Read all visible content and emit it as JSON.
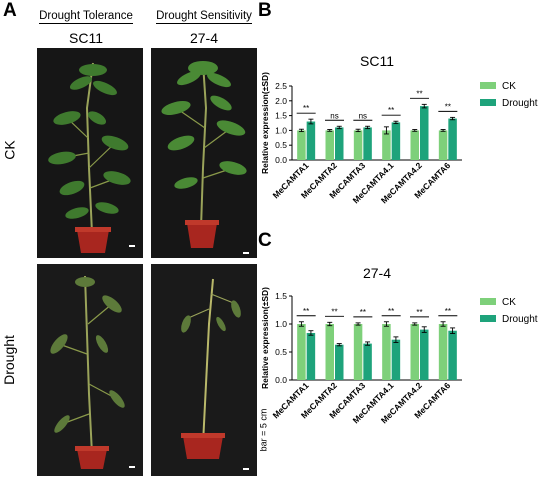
{
  "panels": {
    "a": "A",
    "b": "B",
    "c": "C"
  },
  "photo_panel": {
    "columns": [
      {
        "heading": "Drought Tolerance",
        "cultivar": "SC11"
      },
      {
        "heading": "Drought Sensitivity",
        "cultivar": "27-4"
      }
    ],
    "rows": [
      "CK",
      "Drought"
    ],
    "scale_bar": "bar = 5 cm"
  },
  "colors": {
    "ck": "#7ED07A",
    "drought": "#1EA37B"
  },
  "chart_data": [
    {
      "type": "bar",
      "title": "SC11",
      "ylabel": "Relative expression(±SD)",
      "xlabel": "",
      "ylim": [
        0,
        2.5
      ],
      "yticks": [
        "0.0",
        "0.5",
        "1.0",
        "1.5",
        "2.0",
        "2.5"
      ],
      "categories": [
        "MeCAMTA1",
        "MeCAMTA2",
        "MeCAMTA3",
        "MeCAMTA4.1",
        "MeCAMTA4.2",
        "MeCAMTA6"
      ],
      "series": [
        {
          "name": "CK",
          "values": [
            1.0,
            1.0,
            1.0,
            1.0,
            1.0,
            1.0
          ],
          "errors": [
            0.04,
            0.03,
            0.04,
            0.12,
            0.03,
            0.03
          ]
        },
        {
          "name": "Drought",
          "values": [
            1.3,
            1.1,
            1.1,
            1.27,
            1.82,
            1.4
          ],
          "errors": [
            0.08,
            0.04,
            0.04,
            0.04,
            0.06,
            0.04
          ]
        }
      ],
      "significance": [
        "**",
        "ns",
        "ns",
        "**",
        "**",
        "**"
      ],
      "legend": "top-right",
      "grid": false
    },
    {
      "type": "bar",
      "title": "27-4",
      "ylabel": "Relative expression(±SD)",
      "xlabel": "",
      "ylim": [
        0,
        1.5
      ],
      "yticks": [
        "0.0",
        "0.5",
        "1.0",
        "1.5"
      ],
      "categories": [
        "MeCAMTA1",
        "MeCAMTA2",
        "MeCAMTA3",
        "MeCAMTA4.1",
        "MeCAMTA4.2",
        "MeCAMTA6"
      ],
      "series": [
        {
          "name": "CK",
          "values": [
            1.0,
            1.0,
            1.0,
            1.0,
            1.0,
            1.0
          ],
          "errors": [
            0.04,
            0.03,
            0.02,
            0.04,
            0.02,
            0.04
          ]
        },
        {
          "name": "Drought",
          "values": [
            0.84,
            0.63,
            0.65,
            0.72,
            0.9,
            0.88
          ],
          "errors": [
            0.04,
            0.02,
            0.03,
            0.05,
            0.05,
            0.05
          ]
        }
      ],
      "significance": [
        "**",
        "**",
        "**",
        "**",
        "**",
        "**"
      ],
      "legend": "top-right",
      "grid": false
    }
  ]
}
